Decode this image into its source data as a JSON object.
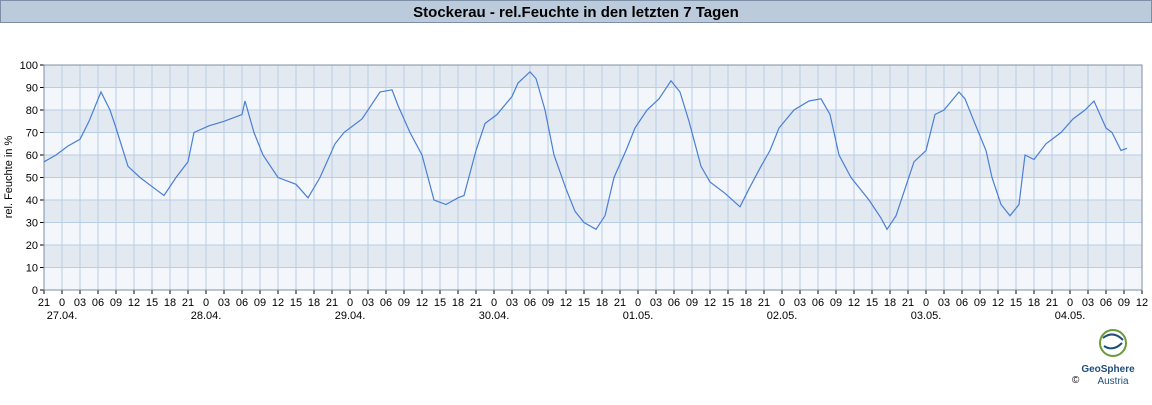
{
  "chart_data": {
    "type": "line",
    "title": "Stockerau - rel.Feuchte in den letzten 7 Tagen",
    "y_label": "rel. Feuchte in %",
    "xlim": [
      -3,
      180
    ],
    "ylim": [
      0,
      100
    ],
    "yticks": [
      0,
      10,
      20,
      30,
      40,
      50,
      60,
      70,
      80,
      90,
      100
    ],
    "xticks": [
      {
        "value": -3,
        "label": "21"
      },
      {
        "value": 0,
        "label": "0"
      },
      {
        "value": 3,
        "label": "03"
      },
      {
        "value": 6,
        "label": "06"
      },
      {
        "value": 9,
        "label": "09"
      },
      {
        "value": 12,
        "label": "12"
      },
      {
        "value": 15,
        "label": "15"
      },
      {
        "value": 18,
        "label": "18"
      },
      {
        "value": 21,
        "label": "21"
      },
      {
        "value": 24,
        "label": "0"
      },
      {
        "value": 27,
        "label": "03"
      },
      {
        "value": 30,
        "label": "06"
      },
      {
        "value": 33,
        "label": "09"
      },
      {
        "value": 36,
        "label": "12"
      },
      {
        "value": 39,
        "label": "15"
      },
      {
        "value": 42,
        "label": "18"
      },
      {
        "value": 45,
        "label": "21"
      },
      {
        "value": 48,
        "label": "0"
      },
      {
        "value": 51,
        "label": "03"
      },
      {
        "value": 54,
        "label": "06"
      },
      {
        "value": 57,
        "label": "09"
      },
      {
        "value": 60,
        "label": "12"
      },
      {
        "value": 63,
        "label": "15"
      },
      {
        "value": 66,
        "label": "18"
      },
      {
        "value": 69,
        "label": "21"
      },
      {
        "value": 72,
        "label": "0"
      },
      {
        "value": 75,
        "label": "03"
      },
      {
        "value": 78,
        "label": "06"
      },
      {
        "value": 81,
        "label": "09"
      },
      {
        "value": 84,
        "label": "12"
      },
      {
        "value": 87,
        "label": "15"
      },
      {
        "value": 90,
        "label": "18"
      },
      {
        "value": 93,
        "label": "21"
      },
      {
        "value": 96,
        "label": "0"
      },
      {
        "value": 99,
        "label": "03"
      },
      {
        "value": 102,
        "label": "06"
      },
      {
        "value": 105,
        "label": "09"
      },
      {
        "value": 108,
        "label": "12"
      },
      {
        "value": 111,
        "label": "15"
      },
      {
        "value": 114,
        "label": "18"
      },
      {
        "value": 117,
        "label": "21"
      },
      {
        "value": 120,
        "label": "0"
      },
      {
        "value": 123,
        "label": "03"
      },
      {
        "value": 126,
        "label": "06"
      },
      {
        "value": 129,
        "label": "09"
      },
      {
        "value": 132,
        "label": "12"
      },
      {
        "value": 135,
        "label": "15"
      },
      {
        "value": 138,
        "label": "18"
      },
      {
        "value": 141,
        "label": "21"
      },
      {
        "value": 144,
        "label": "0"
      },
      {
        "value": 147,
        "label": "03"
      },
      {
        "value": 150,
        "label": "06"
      },
      {
        "value": 153,
        "label": "09"
      },
      {
        "value": 156,
        "label": "12"
      },
      {
        "value": 159,
        "label": "15"
      },
      {
        "value": 162,
        "label": "18"
      },
      {
        "value": 165,
        "label": "21"
      },
      {
        "value": 168,
        "label": "0"
      },
      {
        "value": 171,
        "label": "03"
      },
      {
        "value": 174,
        "label": "06"
      },
      {
        "value": 177,
        "label": "09"
      },
      {
        "value": 180,
        "label": "12"
      }
    ],
    "date_labels": [
      {
        "value": 0,
        "label": "27.04."
      },
      {
        "value": 24,
        "label": "28.04."
      },
      {
        "value": 48,
        "label": "29.04."
      },
      {
        "value": 72,
        "label": "30.04."
      },
      {
        "value": 96,
        "label": "01.05."
      },
      {
        "value": 120,
        "label": "02.05."
      },
      {
        "value": 144,
        "label": "03.05."
      },
      {
        "value": 168,
        "label": "04.05."
      }
    ],
    "grid": true,
    "series": [
      {
        "color": "#4a7fd6",
        "x": [
          -3,
          -1,
          1,
          3,
          4.5,
          6.5,
          8,
          9,
          11,
          13,
          15.5,
          17,
          19,
          21,
          22,
          24.5,
          27,
          30,
          30.5,
          32,
          33.5,
          36,
          39,
          41,
          43,
          45.5,
          47,
          50,
          53,
          55,
          56,
          58,
          60,
          62,
          64,
          66,
          67,
          69,
          70.5,
          72.5,
          75,
          76,
          78,
          79,
          80.5,
          82,
          84,
          85.5,
          87,
          89,
          90.5,
          92,
          94,
          95.5,
          97.5,
          99.5,
          101.5,
          103,
          104.5,
          106.5,
          108,
          110.5,
          113,
          114.5,
          116.5,
          118,
          119.5,
          122,
          124.5,
          126.5,
          128,
          129.5,
          131.5,
          133,
          134.5,
          136.5,
          137.5,
          139,
          140.5,
          142,
          144,
          145.5,
          147,
          149.5,
          150.5,
          152,
          154,
          155,
          156.5,
          158,
          159.5,
          160.5,
          162,
          164,
          166.5,
          168.5,
          170.5,
          172,
          174,
          175,
          176.5,
          177.5
        ],
        "values": [
          57,
          60,
          64,
          67,
          75,
          88,
          80,
          72,
          55,
          50,
          45,
          42,
          50,
          57,
          70,
          73,
          75,
          78,
          84,
          70,
          60,
          50,
          47,
          41,
          50,
          65,
          70,
          76,
          88,
          89,
          82,
          70,
          60,
          40,
          38,
          41,
          42,
          62,
          74,
          78,
          86,
          92,
          97,
          94,
          80,
          60,
          45,
          35,
          30,
          27,
          33,
          50,
          62,
          72,
          80,
          85,
          93,
          88,
          75,
          55,
          48,
          43,
          37,
          45,
          55,
          62,
          72,
          80,
          84,
          85,
          78,
          60,
          50,
          45,
          40,
          32,
          27,
          33,
          45,
          57,
          62,
          78,
          80,
          88,
          85,
          75,
          62,
          50,
          38,
          33,
          38,
          60,
          58,
          65,
          70,
          76,
          80,
          84,
          72,
          70,
          62,
          63
        ]
      }
    ]
  },
  "logo": {
    "name": "GeoSphere",
    "subname": "Austria",
    "copyright": "©"
  }
}
